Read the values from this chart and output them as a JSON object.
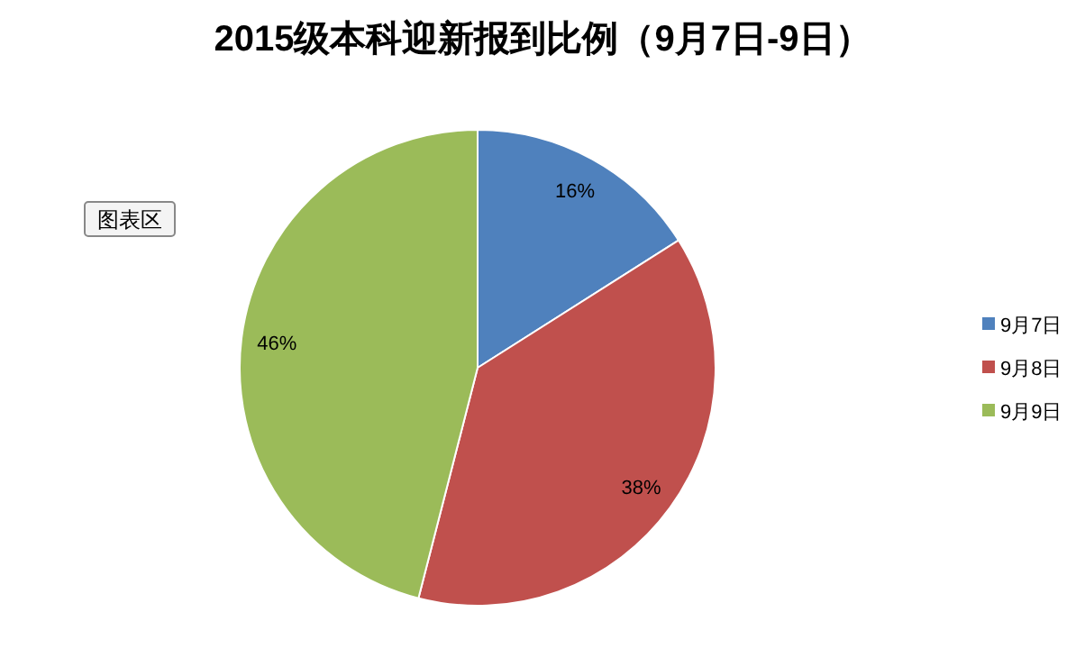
{
  "chart_data": {
    "type": "pie",
    "title": "2015级本科迎新报到比例（9月7日-9日）",
    "categories": [
      "9月7日",
      "9月8日",
      "9月9日"
    ],
    "values": [
      16,
      38,
      46
    ],
    "colors": [
      "#4f81bd",
      "#c0504d",
      "#9bbb59"
    ],
    "value_labels": [
      "16%",
      "38%",
      "46%"
    ],
    "legend": "right",
    "annotations": [
      "图表区"
    ]
  }
}
